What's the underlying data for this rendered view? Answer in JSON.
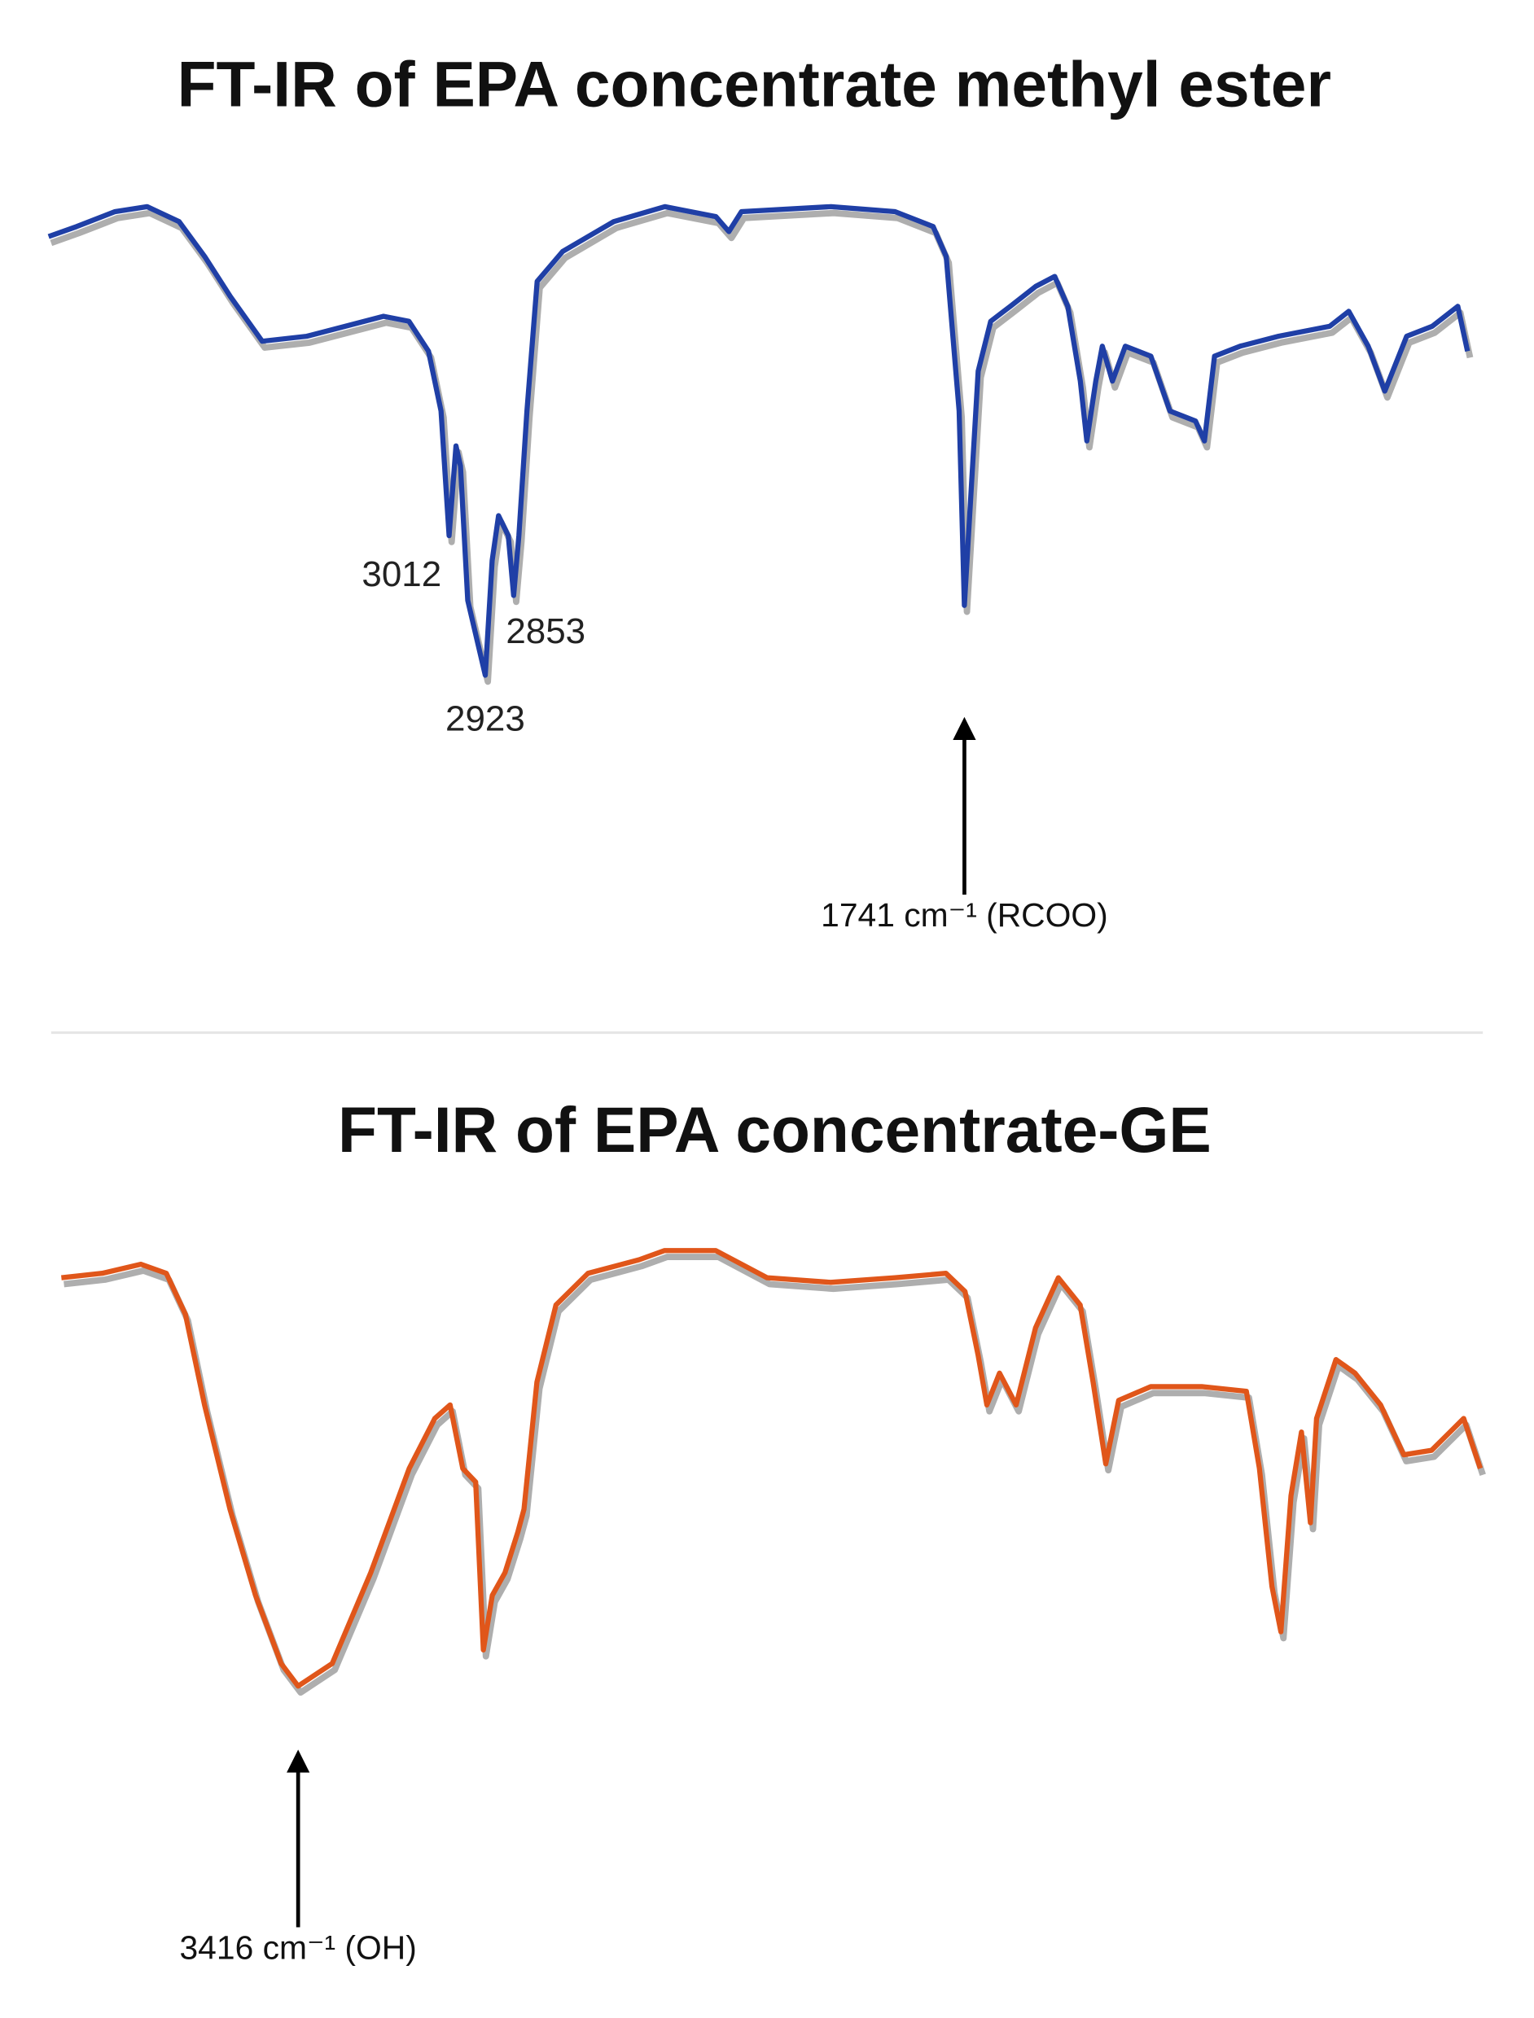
{
  "chart_data": [
    {
      "type": "line",
      "title": "FT-IR of EPA concentrate methyl ester",
      "x": [
        4000,
        3931,
        3836,
        3757,
        3678,
        3615,
        3552,
        3473,
        3363,
        3268,
        3174,
        3111,
        3063,
        3032,
        3012,
        2995,
        2984,
        2966,
        2923,
        2906,
        2890,
        2866,
        2853,
        2840,
        2820,
        2795,
        2732,
        2606,
        2480,
        2354,
        2322,
        2291,
        2070,
        1912,
        1818,
        1786,
        1754,
        1741,
        1707,
        1676,
        1628,
        1565,
        1518,
        1486,
        1455,
        1439,
        1417,
        1401,
        1376,
        1344,
        1281,
        1234,
        1171,
        1149,
        1124,
        1061,
        966,
        840,
        793,
        745,
        704,
        650,
        587,
        524,
        500
      ],
      "series": [
        {
          "color": "#1f3fa6",
          "values": [
            91,
            93,
            96,
            97,
            94,
            87,
            79,
            70,
            71,
            73,
            75,
            74,
            68,
            56,
            31,
            49,
            45,
            18,
            3,
            26,
            35,
            31,
            19,
            31,
            56,
            82,
            88,
            94,
            97,
            95,
            92,
            96,
            97,
            96,
            93,
            87,
            56,
            17,
            64,
            74,
            77,
            81,
            83,
            77,
            62,
            50,
            62,
            69,
            62,
            69,
            67,
            56,
            54,
            50,
            67,
            69,
            71,
            73,
            76,
            69,
            60,
            71,
            73,
            77,
            68
          ]
        }
      ],
      "xlim": [
        4000,
        500
      ],
      "ylim": [
        0,
        100
      ],
      "peak_labels": [
        3012,
        2923,
        2853
      ],
      "annotations": [
        {
          "x": 1741,
          "label": "1741 cm⁻¹ (RCOO)"
        }
      ]
    },
    {
      "type": "line",
      "title": "FT-IR of EPA concentrate-GE",
      "x": [
        4000,
        3899,
        3804,
        3741,
        3694,
        3647,
        3584,
        3521,
        3458,
        3416,
        3332,
        3237,
        3142,
        3079,
        3041,
        3010,
        2978,
        2959,
        2937,
        2906,
        2874,
        2859,
        2827,
        2780,
        2701,
        2575,
        2512,
        2386,
        2259,
        2102,
        1944,
        1818,
        1771,
        1739,
        1717,
        1686,
        1645,
        1597,
        1541,
        1487,
        1455,
        1424,
        1392,
        1313,
        1187,
        1077,
        1045,
        1014,
        992,
        967,
        941,
        919,
        904,
        856,
        809,
        746,
        689,
        620,
        541,
        500
      ],
      "series": [
        {
          "color": "#e0561a",
          "values": [
            93,
            94,
            96,
            94,
            85,
            65,
            42,
            23,
            8,
            3,
            8,
            28,
            51,
            62,
            65,
            51,
            48,
            11,
            23,
            28,
            37,
            42,
            70,
            87,
            94,
            97,
            99,
            99,
            93,
            92,
            93,
            94,
            90,
            76,
            65,
            72,
            65,
            82,
            93,
            87,
            70,
            52,
            66,
            69,
            69,
            68,
            51,
            25,
            15,
            45,
            59,
            39,
            62,
            75,
            72,
            65,
            54,
            55,
            62,
            51
          ]
        }
      ],
      "xlim": [
        4000,
        500
      ],
      "ylim": [
        0,
        100
      ],
      "annotations": [
        {
          "x": 3416,
          "label": "3416 cm⁻¹ (OH)"
        }
      ]
    }
  ]
}
